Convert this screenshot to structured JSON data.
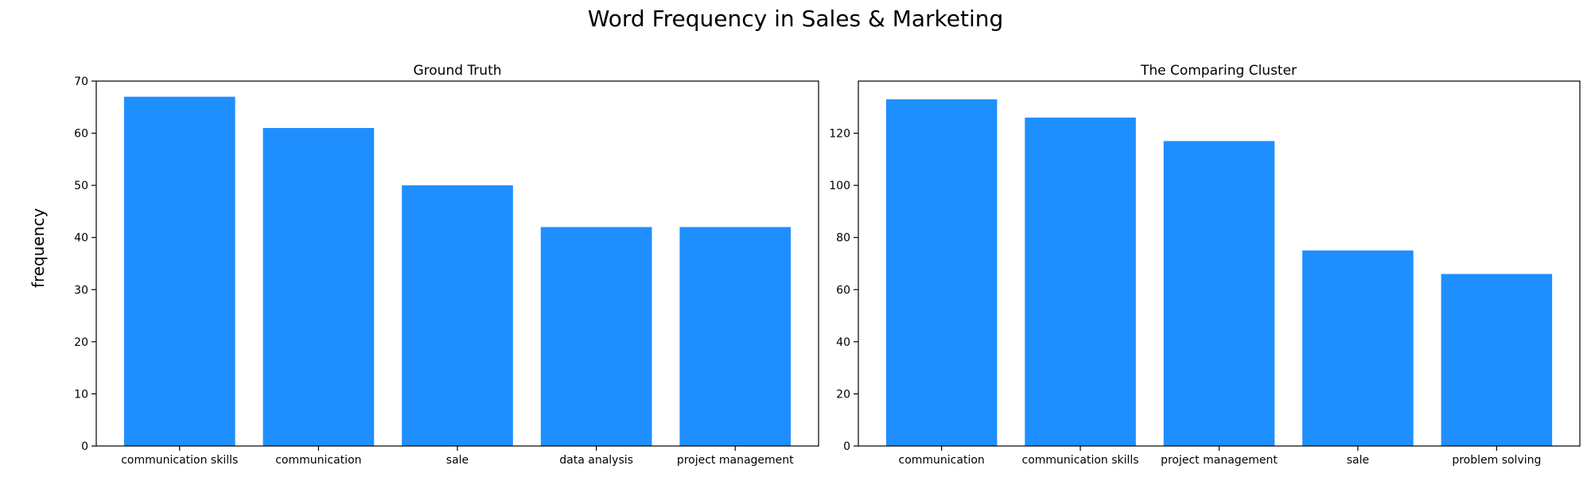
{
  "figure": {
    "title": "Word Frequency in Sales & Marketing",
    "ylabel": "frequency"
  },
  "chart_data": [
    {
      "type": "bar",
      "title": "Ground Truth",
      "xlabel": "",
      "ylabel": "frequency",
      "categories": [
        "communication skills",
        "communication",
        "sale",
        "data analysis",
        "project management"
      ],
      "values": [
        67,
        61,
        50,
        42,
        42
      ],
      "ylim": [
        0,
        70
      ],
      "yticks": [
        0,
        10,
        20,
        30,
        40,
        50,
        60,
        70
      ],
      "bar_color": "#1f8fff",
      "grid": false
    },
    {
      "type": "bar",
      "title": "The Comparing Cluster",
      "xlabel": "",
      "ylabel": "",
      "categories": [
        "communication",
        "communication skills",
        "project management",
        "sale",
        "problem solving"
      ],
      "values": [
        133,
        126,
        117,
        75,
        66
      ],
      "ylim": [
        0,
        140
      ],
      "yticks": [
        0,
        20,
        40,
        60,
        80,
        100,
        120
      ],
      "bar_color": "#1f8fff",
      "grid": false
    }
  ]
}
